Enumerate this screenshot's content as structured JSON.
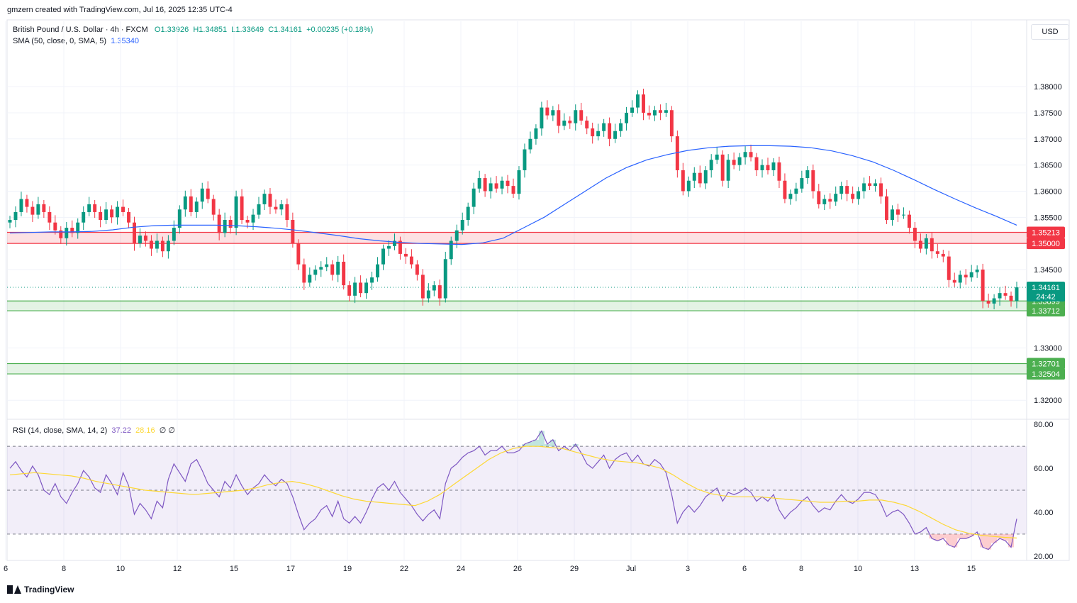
{
  "caption": "gmzern created with TradingView.com, Jul 16, 2025 12:35 UTC-4",
  "legend": {
    "symbol": "British Pound / U.S. Dollar · 4h · FXCM",
    "open": "O1.33926",
    "high": "H1.34851",
    "low": "L1.33649",
    "close": "C1.34161",
    "change": "+0.00235 (+0.18%)",
    "sma_label": "SMA (50, close, 0, SMA, 5)",
    "sma_value": "1.35340",
    "rsi_label": "RSI (14, close, SMA, 14, 2)",
    "rsi_value": "37.22",
    "rsi_sma_value": "28.16",
    "rsi_extra": "∅ ∅"
  },
  "currency": "USD",
  "brand": "TradingView",
  "colors": {
    "up": "#089981",
    "down": "#f23645",
    "sma": "#2962ff",
    "rsi": "#7e57c2",
    "rsi_sma": "#fdd835",
    "resistance_zone": "#f23645",
    "support_zone": "#4caf50"
  },
  "chart_data": [
    {
      "type": "candlestick",
      "symbol": "GBPUSD",
      "timeframe": "4h",
      "y_ticks": [
        "1.38000",
        "1.37500",
        "1.37000",
        "1.36500",
        "1.36000",
        "1.35500",
        "1.34500",
        "1.33000",
        "1.32000"
      ],
      "x_ticks": [
        "6",
        "8",
        "10",
        "12",
        "15",
        "17",
        "19",
        "22",
        "24",
        "26",
        "29",
        "Jul",
        "3",
        "6",
        "8",
        "10",
        "13",
        "15"
      ],
      "ylim": [
        1.3165,
        1.3925
      ],
      "price_labels": {
        "last": "1.34161",
        "countdown": "24:42",
        "resistance_top": "1.35213",
        "resistance_bottom": "1.35000",
        "support_top": "1.33899",
        "support_bottom": "1.33712",
        "support2_top": "1.32701",
        "support2_bottom": "1.32504"
      },
      "zones": [
        {
          "kind": "resistance",
          "from": 1.35,
          "to": 1.35213
        },
        {
          "kind": "support",
          "from": 1.33712,
          "to": 1.33899
        },
        {
          "kind": "support",
          "from": 1.32504,
          "to": 1.32701
        }
      ],
      "last_price": 1.34161,
      "closes": [
        1.3545,
        1.356,
        1.3585,
        1.357,
        1.3555,
        1.3575,
        1.356,
        1.354,
        1.3525,
        1.351,
        1.353,
        1.352,
        1.354,
        1.356,
        1.3575,
        1.356,
        1.3545,
        1.3565,
        1.355,
        1.357,
        1.356,
        1.354,
        1.35,
        1.3515,
        1.3505,
        1.349,
        1.3505,
        1.3485,
        1.3505,
        1.353,
        1.3565,
        1.359,
        1.356,
        1.358,
        1.3605,
        1.3585,
        1.3555,
        1.352,
        1.3545,
        1.353,
        1.359,
        1.3545,
        1.354,
        1.3555,
        1.3575,
        1.3595,
        1.357,
        1.3565,
        1.3575,
        1.3545,
        1.35,
        1.346,
        1.3425,
        1.344,
        1.345,
        1.3455,
        1.346,
        1.344,
        1.3465,
        1.342,
        1.34,
        1.3425,
        1.3405,
        1.3425,
        1.3435,
        1.346,
        1.349,
        1.3495,
        1.3505,
        1.348,
        1.3475,
        1.346,
        1.344,
        1.3395,
        1.341,
        1.342,
        1.3395,
        1.347,
        1.3505,
        1.3525,
        1.3545,
        1.357,
        1.3605,
        1.3625,
        1.36,
        1.3615,
        1.3605,
        1.362,
        1.361,
        1.3595,
        1.364,
        1.368,
        1.37,
        1.372,
        1.376,
        1.3745,
        1.3755,
        1.3725,
        1.3735,
        1.373,
        1.3755,
        1.3735,
        1.372,
        1.3705,
        1.3715,
        1.373,
        1.37,
        1.3715,
        1.373,
        1.375,
        1.376,
        1.3785,
        1.375,
        1.3745,
        1.3755,
        1.375,
        1.3755,
        1.3705,
        1.364,
        1.36,
        1.362,
        1.3635,
        1.3615,
        1.364,
        1.366,
        1.367,
        1.362,
        1.366,
        1.365,
        1.3665,
        1.3675,
        1.3665,
        1.364,
        1.365,
        1.364,
        1.3655,
        1.362,
        1.3585,
        1.3595,
        1.3605,
        1.3625,
        1.364,
        1.36,
        1.3575,
        1.3585,
        1.358,
        1.3595,
        1.361,
        1.3595,
        1.3585,
        1.36,
        1.3615,
        1.361,
        1.3615,
        1.359,
        1.3545,
        1.3565,
        1.3555,
        1.3555,
        1.353,
        1.3505,
        1.349,
        1.351,
        1.3485,
        1.348,
        1.3475,
        1.343,
        1.3425,
        1.344,
        1.3435,
        1.3445,
        1.345,
        1.339,
        1.3385,
        1.3395,
        1.3405,
        1.34,
        1.339,
        1.3416
      ],
      "sma50": [
        1.352,
        1.3521,
        1.3522,
        1.3522,
        1.3523,
        1.3526,
        1.3531,
        1.3534,
        1.3535,
        1.3535,
        1.3535,
        1.3534,
        1.3532,
        1.3529,
        1.3525,
        1.352,
        1.3515,
        1.3509,
        1.3505,
        1.3502,
        1.35,
        1.3499,
        1.3498,
        1.3501,
        1.351,
        1.353,
        1.355,
        1.3575,
        1.36,
        1.3625,
        1.3645,
        1.366,
        1.367,
        1.3678,
        1.3683,
        1.3686,
        1.3687,
        1.3687,
        1.3686,
        1.3683,
        1.3677,
        1.3668,
        1.3656,
        1.364,
        1.3622,
        1.3603,
        1.3585,
        1.3568,
        1.3552,
        1.3535
      ],
      "sma50_start_index": 0,
      "sma50_step": 3.59
    },
    {
      "type": "line",
      "name": "RSI (14, close, SMA, 14, 2)",
      "y_ticks": [
        "80.00",
        "60.00",
        "40.00",
        "20.00"
      ],
      "ylim": [
        18,
        82
      ],
      "bands": {
        "upper": 70,
        "middle": 50,
        "lower": 30
      },
      "rsi": [
        60,
        63,
        59,
        56,
        61,
        57,
        50,
        48,
        53,
        47,
        44,
        49,
        53,
        59,
        56,
        51,
        49,
        57,
        53,
        48,
        58,
        52,
        39,
        44,
        41,
        37,
        45,
        42,
        55,
        62,
        58,
        54,
        62,
        64,
        59,
        53,
        50,
        47,
        54,
        51,
        57,
        52,
        48,
        51,
        53,
        57,
        54,
        52,
        55,
        53,
        47,
        39,
        32,
        35,
        37,
        41,
        43,
        38,
        45,
        37,
        35,
        38,
        35,
        40,
        46,
        51,
        53,
        50,
        54,
        49,
        46,
        43,
        39,
        36,
        39,
        41,
        37,
        53,
        60,
        62,
        65,
        67,
        68,
        70,
        66,
        68,
        68,
        70,
        67,
        67,
        68,
        71,
        72,
        73,
        77,
        71,
        73,
        68,
        70,
        68,
        71,
        67,
        62,
        60,
        63,
        66,
        60,
        64,
        66,
        67,
        63,
        66,
        62,
        61,
        64,
        62,
        58,
        48,
        35,
        40,
        43,
        40,
        43,
        47,
        49,
        51,
        45,
        49,
        48,
        49,
        51,
        49,
        45,
        47,
        45,
        48,
        41,
        37,
        40,
        42,
        45,
        47,
        43,
        40,
        42,
        41,
        45,
        48,
        45,
        44,
        46,
        49,
        49,
        48,
        44,
        38,
        40,
        41,
        39,
        35,
        30,
        31,
        33,
        28,
        27,
        28,
        25,
        24,
        28,
        28,
        29,
        31,
        24,
        23,
        26,
        28,
        27,
        24,
        37
      ],
      "rsi_sma": [
        57,
        57.5,
        58,
        57.5,
        57,
        56.5,
        55.5,
        54,
        53,
        52,
        51,
        50,
        49.5,
        49,
        48.5,
        48,
        48.5,
        49,
        49.5,
        50,
        51,
        52.5,
        53.5,
        54,
        53,
        51.5,
        49.5,
        47.5,
        46,
        45,
        44.5,
        44,
        43.5,
        43,
        45,
        48,
        52,
        56,
        60,
        64,
        67,
        69,
        70,
        70,
        69.5,
        69,
        67.5,
        66,
        64.5,
        63.5,
        63,
        62.5,
        61.5,
        60,
        57,
        53.5,
        50.5,
        48.5,
        47.5,
        47,
        47,
        47,
        46.5,
        46,
        45.5,
        45,
        44.5,
        44.5,
        45,
        45,
        45.5,
        45.5,
        44.5,
        43,
        40.5,
        37.5,
        34.5,
        32,
        30.5,
        29.5,
        29,
        28.5,
        28.2
      ]
    }
  ]
}
